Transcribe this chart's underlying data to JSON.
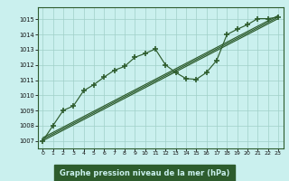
{
  "title": "Graphe pression niveau de la mer (hPa)",
  "bg_color": "#caf0ee",
  "grid_color": "#a0cfc8",
  "line_color": "#2d5c2d",
  "title_bg": "#2d5c2d",
  "title_fg": "#caf0ee",
  "ylim": [
    1006.5,
    1015.8
  ],
  "yticks": [
    1007,
    1008,
    1009,
    1010,
    1011,
    1012,
    1013,
    1014,
    1015
  ],
  "xlim": [
    -0.5,
    23.5
  ],
  "x_ticks": [
    0,
    1,
    2,
    3,
    4,
    5,
    6,
    7,
    8,
    9,
    10,
    11,
    12,
    13,
    14,
    15,
    16,
    17,
    18,
    19,
    20,
    21,
    22,
    23
  ],
  "y_measured": [
    1007.0,
    1008.0,
    1009.0,
    1009.3,
    1010.3,
    1010.7,
    1011.2,
    1011.65,
    1011.9,
    1012.5,
    1012.75,
    1013.05,
    1012.0,
    1011.5,
    1011.1,
    1011.05,
    1011.5,
    1012.3,
    1014.0,
    1014.35,
    1014.65,
    1015.05,
    1015.05,
    1015.15
  ],
  "trend_lines": [
    {
      "x0": 0,
      "y0": 1007.0,
      "x1": 23,
      "y1": 1015.05
    },
    {
      "x0": 0,
      "y0": 1007.1,
      "x1": 23,
      "y1": 1015.15
    },
    {
      "x0": 0,
      "y0": 1007.2,
      "x1": 23,
      "y1": 1015.25
    }
  ]
}
